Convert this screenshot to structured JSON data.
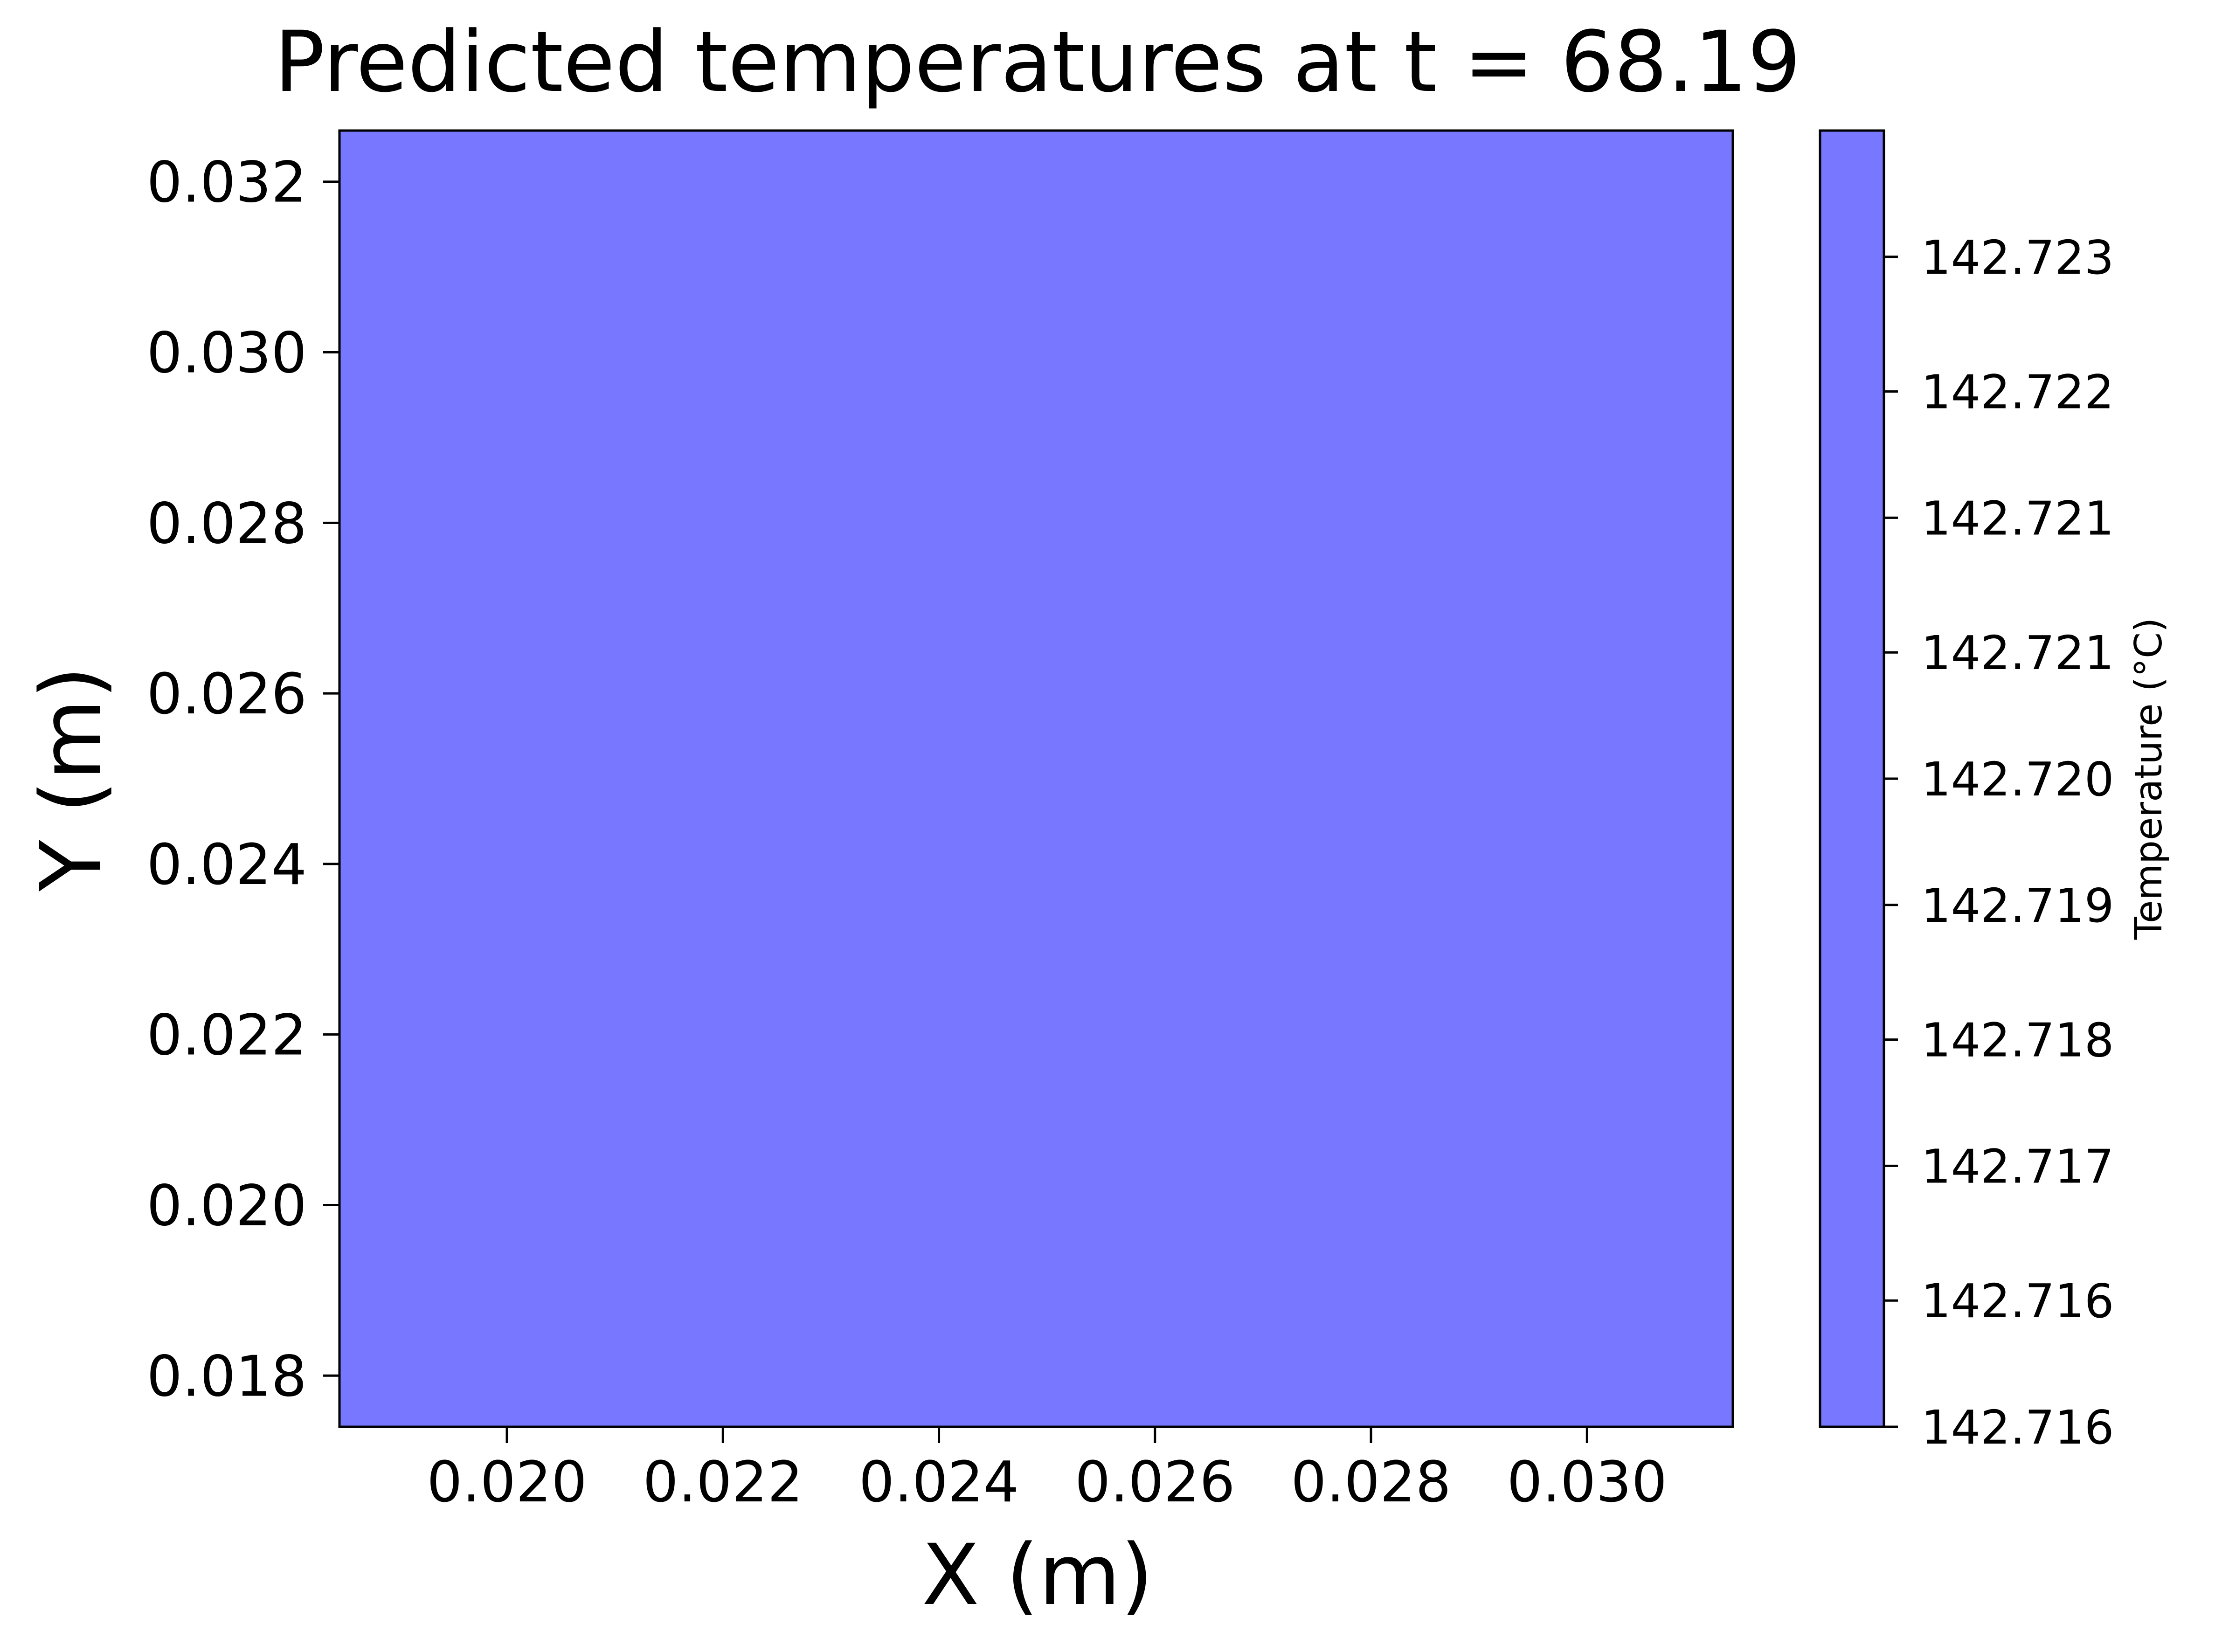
{
  "chart_data": {
    "type": "heatmap",
    "title": "Predicted temperatures at t = 68.19",
    "xlabel": "X (m)",
    "ylabel": "Y (m)",
    "xlim": [
      0.01845,
      0.03135
    ],
    "ylim": [
      0.0174,
      0.0326
    ],
    "x_ticks": [
      {
        "value": 0.02,
        "label": "0.020"
      },
      {
        "value": 0.022,
        "label": "0.022"
      },
      {
        "value": 0.024,
        "label": "0.024"
      },
      {
        "value": 0.026,
        "label": "0.026"
      },
      {
        "value": 0.028,
        "label": "0.028"
      },
      {
        "value": 0.03,
        "label": "0.030"
      }
    ],
    "y_ticks": [
      {
        "value": 0.018,
        "label": "0.018"
      },
      {
        "value": 0.02,
        "label": "0.020"
      },
      {
        "value": 0.022,
        "label": "0.022"
      },
      {
        "value": 0.024,
        "label": "0.024"
      },
      {
        "value": 0.026,
        "label": "0.026"
      },
      {
        "value": 0.028,
        "label": "0.028"
      },
      {
        "value": 0.03,
        "label": "0.030"
      },
      {
        "value": 0.032,
        "label": "0.032"
      }
    ],
    "field": {
      "value": 142.7199,
      "color": "#7777ff"
    },
    "grid": false,
    "colorbar": {
      "label": "Temperature (°C)",
      "placement": "right",
      "color": "#7777ff",
      "range": [
        142.716,
        142.7237
      ],
      "ticks": [
        {
          "value": 142.716,
          "label": "142.716"
        },
        {
          "value": 142.71675,
          "label": "142.716"
        },
        {
          "value": 142.71755,
          "label": "142.717"
        },
        {
          "value": 142.7183,
          "label": "142.718"
        },
        {
          "value": 142.7191,
          "label": "142.719"
        },
        {
          "value": 142.71985,
          "label": "142.720"
        },
        {
          "value": 142.7206,
          "label": "142.721"
        },
        {
          "value": 142.7214,
          "label": "142.721"
        },
        {
          "value": 142.72215,
          "label": "142.722"
        },
        {
          "value": 142.72295,
          "label": "142.723"
        }
      ]
    }
  }
}
